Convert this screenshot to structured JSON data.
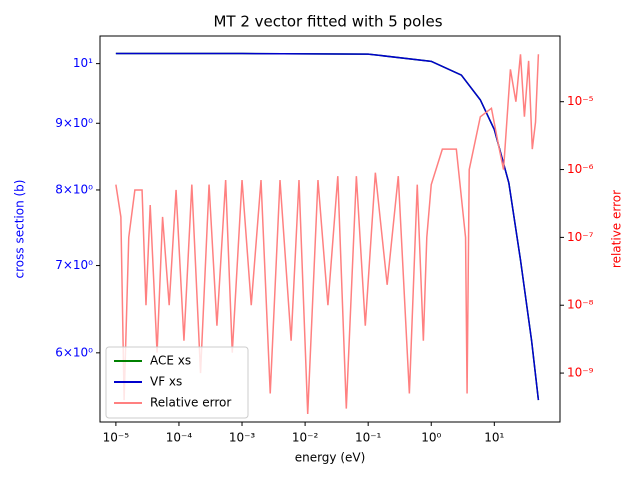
{
  "chart_data": {
    "type": "line",
    "title": "MT 2 vector fitted with 5 poles",
    "xlabel": "energy (eV)",
    "ylabel": "cross section (b)",
    "y2label": "relative error",
    "xscale": "log",
    "yscale": "log",
    "y2scale": "log",
    "xlim": [
      5.6e-06,
      110
    ],
    "ylim": [
      5.31,
      10.5
    ],
    "y2lim": [
      1.9e-10,
      9.3e-05
    ],
    "xticks": [
      {
        "value": 1e-05,
        "label": "10⁻⁵"
      },
      {
        "value": 0.0001,
        "label": "10⁻⁴"
      },
      {
        "value": 0.001,
        "label": "10⁻³"
      },
      {
        "value": 0.01,
        "label": "10⁻²"
      },
      {
        "value": 0.1,
        "label": "10⁻¹"
      },
      {
        "value": 1,
        "label": "10⁰"
      },
      {
        "value": 10,
        "label": "10¹"
      }
    ],
    "yticks": [
      {
        "value": 6,
        "label": "6×10⁰"
      },
      {
        "value": 7,
        "label": "7×10⁰"
      },
      {
        "value": 8,
        "label": "8×10⁰"
      },
      {
        "value": 9,
        "label": "9×10⁰"
      },
      {
        "value": 10,
        "label": "10¹"
      }
    ],
    "y2ticks": [
      {
        "value": 1e-09,
        "label": "10⁻⁹"
      },
      {
        "value": 1e-08,
        "label": "10⁻⁸"
      },
      {
        "value": 1e-07,
        "label": "10⁻⁷"
      },
      {
        "value": 1e-06,
        "label": "10⁻⁶"
      },
      {
        "value": 1e-05,
        "label": "10⁻⁵"
      }
    ],
    "ycolor": "blue",
    "y2color": "red",
    "legend": "lower left",
    "series": [
      {
        "name": "ACE xs",
        "color": "green",
        "x": [
          1e-05,
          0.001,
          0.1,
          1,
          3,
          6,
          10,
          17,
          26,
          39,
          50
        ],
        "values": [
          10.18,
          10.18,
          10.17,
          10.04,
          9.8,
          9.38,
          8.9,
          8.1,
          7.07,
          6.13,
          5.52
        ]
      },
      {
        "name": "VF xs",
        "color": "#0000cc",
        "x": [
          1e-05,
          0.001,
          0.1,
          1,
          3,
          6,
          10,
          17,
          26,
          39,
          50
        ],
        "values": [
          10.18,
          10.18,
          10.17,
          10.04,
          9.8,
          9.38,
          8.9,
          8.1,
          7.07,
          6.13,
          5.52
        ]
      },
      {
        "name": "Relative error",
        "color": "#ff8080",
        "axis": "y2",
        "x": [
          1e-05,
          1.2e-05,
          1.35e-05,
          1.6e-05,
          2e-05,
          2.6e-05,
          3e-05,
          3.5e-05,
          4.5e-05,
          5.5e-05,
          7e-05,
          9e-05,
          0.00012,
          0.00016,
          0.00022,
          0.0003,
          0.0004,
          0.00055,
          0.0007,
          0.001,
          0.0014,
          0.002,
          0.0028,
          0.004,
          0.006,
          0.008,
          0.011,
          0.016,
          0.023,
          0.033,
          0.045,
          0.065,
          0.09,
          0.13,
          0.2,
          0.3,
          0.45,
          0.6,
          0.75,
          0.85,
          1.0,
          1.5,
          2.5,
          3.5,
          3.7,
          4,
          6,
          9,
          12,
          14,
          18,
          22,
          26,
          30,
          35,
          40,
          45,
          50
        ],
        "values": [
          6e-07,
          2e-07,
          4e-10,
          1e-07,
          5e-07,
          5e-07,
          1e-08,
          3e-07,
          2e-09,
          2e-07,
          1e-08,
          5e-07,
          3e-09,
          6e-07,
          1e-09,
          6e-07,
          5e-09,
          7e-07,
          2e-09,
          7e-07,
          1e-08,
          7e-07,
          5e-10,
          7e-07,
          3e-09,
          7e-07,
          2.5e-10,
          7e-07,
          1e-08,
          8e-07,
          3e-10,
          8e-07,
          5e-09,
          9e-07,
          2e-08,
          8e-07,
          5e-10,
          6e-07,
          3e-09,
          1e-07,
          6e-07,
          2e-06,
          2e-06,
          1e-07,
          5e-10,
          1e-06,
          6e-06,
          8e-06,
          2e-06,
          1e-06,
          3e-05,
          1e-05,
          5e-05,
          6e-06,
          4e-05,
          2e-06,
          5e-06,
          5e-05
        ]
      }
    ]
  }
}
